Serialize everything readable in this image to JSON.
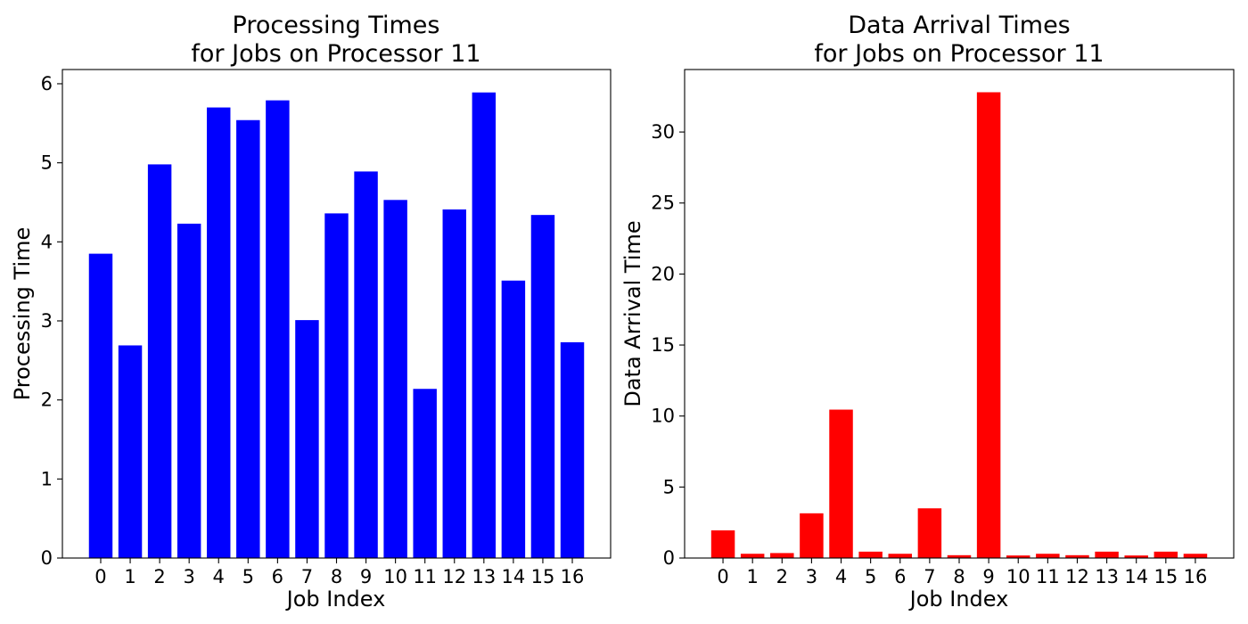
{
  "chart_data": [
    {
      "type": "bar",
      "title_line1": "Processing Times",
      "title_line2": "for Jobs on Processor 11",
      "xlabel": "Job Index",
      "ylabel": "Processing Time",
      "categories": [
        "0",
        "1",
        "2",
        "3",
        "4",
        "5",
        "6",
        "7",
        "8",
        "9",
        "10",
        "11",
        "12",
        "13",
        "14",
        "15",
        "16"
      ],
      "values": [
        3.85,
        2.69,
        4.98,
        4.23,
        5.7,
        5.54,
        5.79,
        3.01,
        4.36,
        4.89,
        4.53,
        2.14,
        4.41,
        5.89,
        3.51,
        4.34,
        2.73
      ],
      "ylim": [
        0,
        6.18
      ],
      "yticks": [
        "0",
        "1",
        "2",
        "3",
        "4",
        "5",
        "6"
      ],
      "ytick_values": [
        0,
        1,
        2,
        3,
        4,
        5,
        6
      ],
      "color": "#0000ff",
      "grid": false,
      "legend": "none"
    },
    {
      "type": "bar",
      "title_line1": "Data Arrival Times",
      "title_line2": "for Jobs on Processor 11",
      "xlabel": "Job Index",
      "ylabel": "Data Arrival Time",
      "categories": [
        "0",
        "1",
        "2",
        "3",
        "4",
        "5",
        "6",
        "7",
        "8",
        "9",
        "10",
        "11",
        "12",
        "13",
        "14",
        "15",
        "16"
      ],
      "values": [
        1.95,
        0.3,
        0.35,
        3.15,
        10.45,
        0.45,
        0.3,
        3.5,
        0.2,
        32.8,
        0.18,
        0.3,
        0.2,
        0.45,
        0.18,
        0.45,
        0.3
      ],
      "ylim": [
        0,
        34.4
      ],
      "yticks": [
        "0",
        "5",
        "10",
        "15",
        "20",
        "25",
        "30"
      ],
      "ytick_values": [
        0,
        5,
        10,
        15,
        20,
        25,
        30
      ],
      "color": "#ff0000",
      "grid": false,
      "legend": "none"
    }
  ]
}
